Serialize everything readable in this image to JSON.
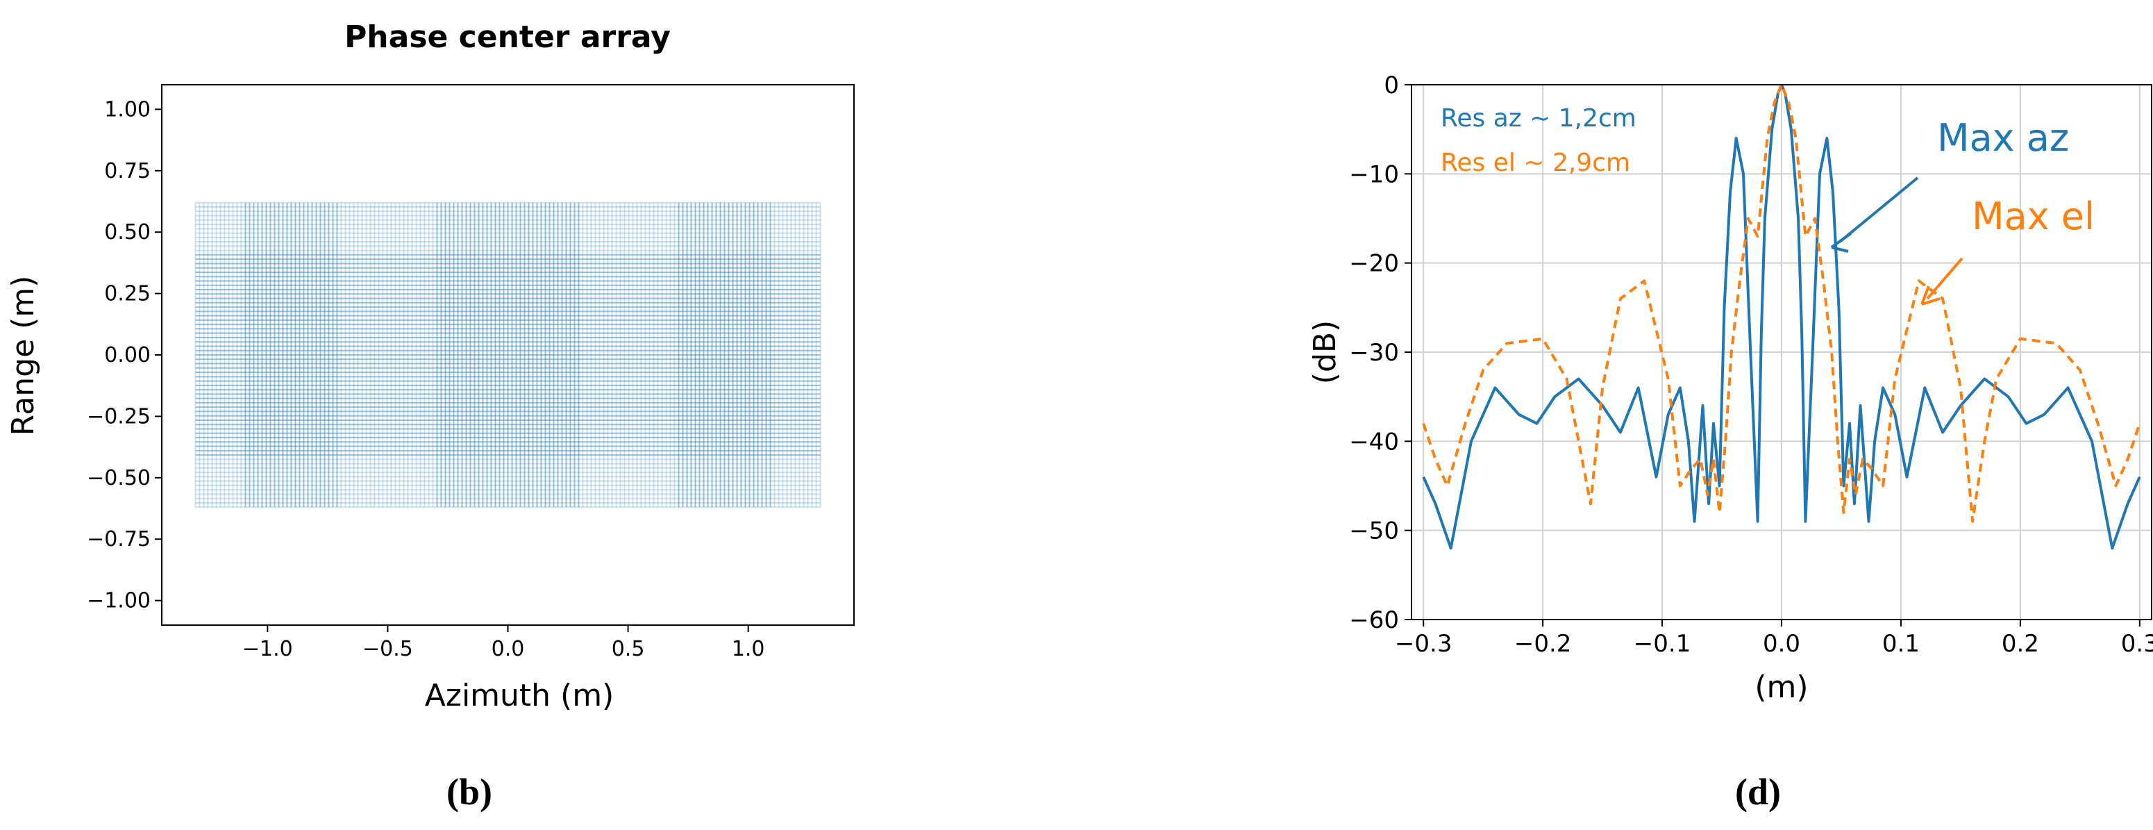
{
  "chart_data": [
    {
      "type": "scatter",
      "panel_label": "(b)",
      "title": "Phase center array",
      "xlabel": "Azimuth (m)",
      "ylabel": "Range (m)",
      "xlim": [
        -1.44,
        1.44
      ],
      "ylim": [
        -1.1,
        1.1
      ],
      "xticks": [
        -1.0,
        -0.5,
        0.0,
        0.5,
        1.0
      ],
      "xtick_labels": [
        "−1.0",
        "−0.5",
        "0.0",
        "0.5",
        "1.0"
      ],
      "yticks": [
        1.0,
        0.75,
        0.5,
        0.25,
        0.0,
        -0.25,
        -0.5,
        -0.75,
        -1.0
      ],
      "ytick_labels": [
        "1.00",
        "0.75",
        "0.50",
        "0.25",
        "0.00",
        "−0.25",
        "−0.50",
        "−0.75",
        "−1.00"
      ],
      "grid": false,
      "color": "#1f77b4",
      "array": {
        "azimuth_range": [
          -1.3,
          1.3
        ],
        "range_range": [
          -0.62,
          0.62
        ],
        "dense_azimuth_bands": [
          [
            -1.1,
            -0.7
          ],
          [
            -0.3,
            0.3
          ],
          [
            0.7,
            1.1
          ]
        ],
        "dense_range_band": [
          -0.42,
          0.42
        ]
      }
    },
    {
      "type": "line",
      "panel_label": "(d)",
      "title": "",
      "xlabel": "(m)",
      "ylabel": "(dB)",
      "xlim": [
        -0.31,
        0.31
      ],
      "ylim": [
        -60,
        0
      ],
      "xticks": [
        -0.3,
        -0.2,
        -0.1,
        0.0,
        0.1,
        0.2,
        0.3
      ],
      "xtick_labels": [
        "−0.3",
        "−0.2",
        "−0.1",
        "0.0",
        "0.1",
        "0.2",
        "0.3"
      ],
      "yticks": [
        0,
        -10,
        -20,
        -30,
        -40,
        -50,
        -60
      ],
      "ytick_labels": [
        "0",
        "−10",
        "−20",
        "−30",
        "−40",
        "−50",
        "−60"
      ],
      "grid": true,
      "series": [
        {
          "name": "Res az ~ 1,2cm",
          "color": "#1f77b4",
          "style": "solid",
          "x": [
            -0.3,
            -0.29,
            -0.277,
            -0.26,
            -0.24,
            -0.22,
            -0.205,
            -0.19,
            -0.17,
            -0.15,
            -0.135,
            -0.12,
            -0.105,
            -0.095,
            -0.085,
            -0.078,
            -0.073,
            -0.066,
            -0.061,
            -0.057,
            -0.052,
            -0.048,
            -0.043,
            -0.038,
            -0.032,
            -0.026,
            -0.02,
            -0.017,
            -0.014,
            -0.008,
            -0.003,
            0.0,
            0.003,
            0.008,
            0.014,
            0.017,
            0.02,
            0.026,
            0.032,
            0.038,
            0.043,
            0.048,
            0.052,
            0.057,
            0.061,
            0.066,
            0.073,
            0.078,
            0.085,
            0.095,
            0.105,
            0.12,
            0.135,
            0.15,
            0.17,
            0.19,
            0.205,
            0.22,
            0.24,
            0.26,
            0.277,
            0.29,
            0.3
          ],
          "y": [
            -44,
            -47,
            -52,
            -40,
            -34,
            -37,
            -38,
            -35,
            -33,
            -36,
            -39,
            -34,
            -44,
            -37,
            -34,
            -40,
            -49,
            -36,
            -47,
            -38,
            -45,
            -25,
            -12,
            -6,
            -10,
            -30,
            -49,
            -28,
            -15,
            -5,
            -1,
            0,
            -1,
            -5,
            -15,
            -28,
            -49,
            -30,
            -10,
            -6,
            -12,
            -25,
            -45,
            -38,
            -47,
            -36,
            -49,
            -40,
            -34,
            -37,
            -44,
            -34,
            -39,
            -36,
            -33,
            -35,
            -38,
            -37,
            -34,
            -40,
            -52,
            -47,
            -44
          ]
        },
        {
          "name": "Res el ~ 2,9cm",
          "color": "#ff7f0e",
          "style": "dashed",
          "x": [
            -0.3,
            -0.29,
            -0.28,
            -0.265,
            -0.25,
            -0.23,
            -0.2,
            -0.18,
            -0.17,
            -0.16,
            -0.15,
            -0.135,
            -0.115,
            -0.095,
            -0.085,
            -0.075,
            -0.068,
            -0.062,
            -0.057,
            -0.052,
            -0.047,
            -0.042,
            -0.035,
            -0.028,
            -0.02,
            -0.012,
            -0.006,
            0.0,
            0.006,
            0.012,
            0.02,
            0.028,
            0.035,
            0.042,
            0.047,
            0.052,
            0.057,
            0.062,
            0.068,
            0.075,
            0.085,
            0.095,
            0.115,
            0.135,
            0.15,
            0.16,
            0.17,
            0.18,
            0.2,
            0.23,
            0.25,
            0.265,
            0.28,
            0.29,
            0.3
          ],
          "y": [
            -38,
            -42,
            -45,
            -38,
            -32,
            -29,
            -28.5,
            -33,
            -40,
            -47,
            -34,
            -24,
            -22,
            -33,
            -45,
            -43,
            -42,
            -46,
            -42,
            -48,
            -40,
            -30,
            -22,
            -15,
            -17,
            -6,
            -2,
            0,
            -2,
            -6,
            -17,
            -15,
            -22,
            -30,
            -40,
            -48,
            -42,
            -46,
            -42,
            -43,
            -45,
            -33,
            -22,
            -24,
            -34,
            -49,
            -40,
            -33,
            -28.5,
            -29,
            -32,
            -38,
            -45,
            -42,
            -38
          ]
        }
      ],
      "annotations": [
        {
          "text": "Max az",
          "color": "#1f77b4"
        },
        {
          "text": "Max el",
          "color": "#ff7f0e"
        }
      ]
    }
  ]
}
